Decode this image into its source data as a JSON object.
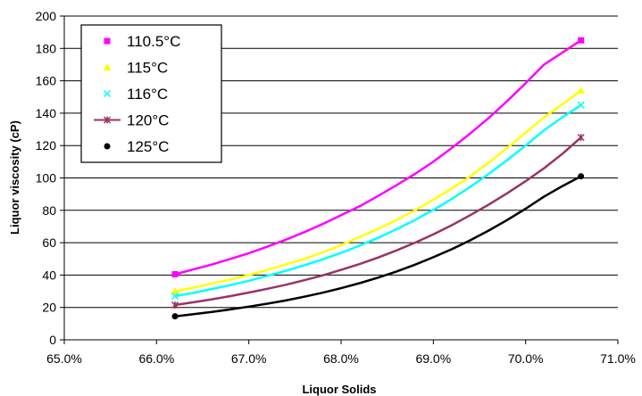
{
  "chart_data": {
    "type": "line",
    "title": "",
    "xlabel": "Liquor Solids",
    "ylabel": "Liquor viscosity (cP)",
    "xlim": [
      0.65,
      0.71
    ],
    "ylim": [
      0,
      200
    ],
    "x_ticks": [
      "65.0%",
      "66.0%",
      "67.0%",
      "68.0%",
      "69.0%",
      "70.0%",
      "71.0%"
    ],
    "y_ticks": [
      "0",
      "20",
      "40",
      "60",
      "80",
      "100",
      "120",
      "140",
      "160",
      "180",
      "200"
    ],
    "grid": "horizontal",
    "legend_position": "top-left",
    "series": [
      {
        "name": "110.5°C",
        "color": "#FF00FF",
        "marker": "square",
        "x": [
          0.662,
          0.664,
          0.666,
          0.668,
          0.67,
          0.672,
          0.674,
          0.676,
          0.678,
          0.68,
          0.682,
          0.684,
          0.686,
          0.688,
          0.69,
          0.692,
          0.694,
          0.696,
          0.698,
          0.7,
          0.702,
          0.704,
          0.706
        ],
        "y": [
          40.5,
          43.5,
          46.5,
          50.0,
          53.5,
          57.5,
          61.8,
          66.5,
          71.5,
          77.0,
          82.5,
          88.8,
          95.5,
          102.5,
          110.0,
          118.5,
          127.5,
          137.0,
          147.5,
          158.5,
          170.0,
          177.5,
          185.0
        ]
      },
      {
        "name": "115°C",
        "color": "#FFFF00",
        "marker": "triangle",
        "x": [
          0.662,
          0.664,
          0.666,
          0.668,
          0.67,
          0.672,
          0.674,
          0.676,
          0.678,
          0.68,
          0.682,
          0.684,
          0.686,
          0.688,
          0.69,
          0.692,
          0.694,
          0.696,
          0.698,
          0.7,
          0.702,
          0.704,
          0.706
        ],
        "y": [
          30.0,
          32.2,
          34.8,
          37.2,
          40.0,
          43.2,
          46.5,
          50.0,
          54.0,
          58.5,
          63.5,
          68.5,
          74.0,
          80.0,
          86.5,
          93.5,
          101.0,
          109.5,
          118.5,
          128.0,
          137.5,
          145.5,
          154.0
        ]
      },
      {
        "name": "116°C",
        "color": "#00FFFF",
        "marker": "x",
        "x": [
          0.662,
          0.664,
          0.666,
          0.668,
          0.67,
          0.672,
          0.674,
          0.676,
          0.678,
          0.68,
          0.682,
          0.684,
          0.686,
          0.688,
          0.69,
          0.692,
          0.694,
          0.696,
          0.698,
          0.7,
          0.702,
          0.704,
          0.706
        ],
        "y": [
          27.0,
          29.0,
          31.4,
          33.8,
          36.5,
          39.5,
          42.6,
          46.0,
          49.7,
          53.7,
          58.2,
          63.0,
          68.3,
          74.0,
          80.2,
          87.0,
          94.5,
          102.5,
          111.0,
          120.0,
          129.5,
          137.5,
          145.0
        ]
      },
      {
        "name": "120°C",
        "color": "#993366",
        "marker": "star",
        "x": [
          0.662,
          0.664,
          0.666,
          0.668,
          0.67,
          0.672,
          0.674,
          0.676,
          0.678,
          0.68,
          0.682,
          0.684,
          0.686,
          0.688,
          0.69,
          0.692,
          0.694,
          0.696,
          0.698,
          0.7,
          0.702,
          0.704,
          0.706
        ],
        "y": [
          21.5,
          23.2,
          25.0,
          27.0,
          29.2,
          31.5,
          34.0,
          36.8,
          39.8,
          43.2,
          46.8,
          50.8,
          55.2,
          60.0,
          65.2,
          70.8,
          77.0,
          83.5,
          90.5,
          98.0,
          106.0,
          115.0,
          125.0
        ]
      },
      {
        "name": "125°C",
        "color": "#000000",
        "marker": "circle",
        "x": [
          0.662,
          0.664,
          0.666,
          0.668,
          0.67,
          0.672,
          0.674,
          0.676,
          0.678,
          0.68,
          0.682,
          0.684,
          0.686,
          0.688,
          0.69,
          0.692,
          0.694,
          0.696,
          0.698,
          0.7,
          0.702,
          0.704,
          0.706
        ],
        "y": [
          14.5,
          15.8,
          17.2,
          18.8,
          20.5,
          22.3,
          24.3,
          26.6,
          29.1,
          31.9,
          35.0,
          38.4,
          42.2,
          46.4,
          51.0,
          56.0,
          61.5,
          67.5,
          74.0,
          81.0,
          88.5,
          95.0,
          101.0
        ]
      }
    ]
  },
  "colors": {
    "grid": "#000000",
    "axis": "#000000",
    "background": "#ffffff"
  }
}
